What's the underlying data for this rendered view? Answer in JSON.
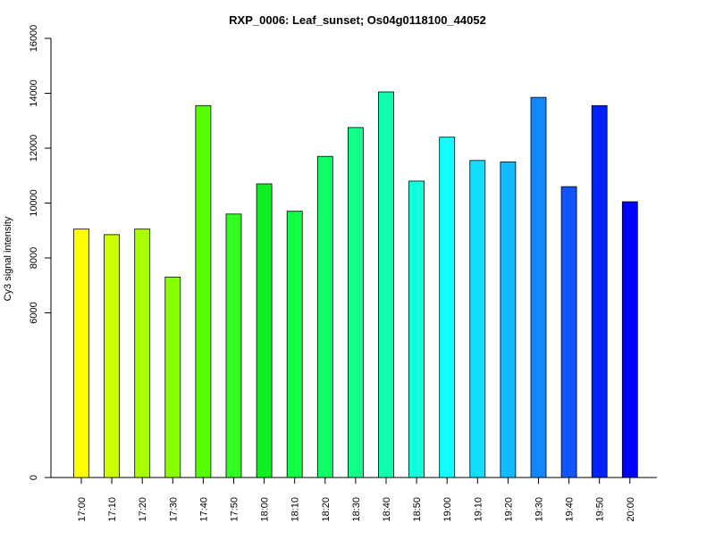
{
  "chart_data": {
    "type": "bar",
    "title": "RXP_0006: Leaf_sunset; Os04g0118100_44052",
    "xlabel": "",
    "ylabel": "Cy3 signal intensity",
    "ylim": [
      0,
      16000
    ],
    "yticks": [
      0,
      6000,
      8000,
      10000,
      12000,
      14000,
      16000
    ],
    "y_axis_note": "tick labels printed at 0, 6000, 8000, 10000, 12000, 14000, 16000 with a compressed lower region",
    "grid": false,
    "legend": "none",
    "categories": [
      "17:00",
      "17:10",
      "17:20",
      "17:30",
      "17:40",
      "17:50",
      "18:00",
      "18:10",
      "18:20",
      "18:30",
      "18:40",
      "18:50",
      "19:00",
      "19:10",
      "19:20",
      "19:30",
      "19:40",
      "19:50",
      "20:00"
    ],
    "values": [
      9050,
      8850,
      9050,
      7300,
      13550,
      9600,
      10700,
      9700,
      11700,
      12750,
      14050,
      10800,
      12400,
      11550,
      11500,
      13850,
      10600,
      13550,
      10050
    ],
    "colors": [
      "#FFFF00",
      "#CCFF00",
      "#AAFF00",
      "#88FF00",
      "#55FF00",
      "#33FF22",
      "#11EE22",
      "#11FF44",
      "#11FF66",
      "#11FF88",
      "#11FFAA",
      "#11FFDD",
      "#11FFFF",
      "#11DDFF",
      "#11BBFF",
      "#1188FF",
      "#1155FF",
      "#0022FF",
      "#0000FF"
    ]
  }
}
